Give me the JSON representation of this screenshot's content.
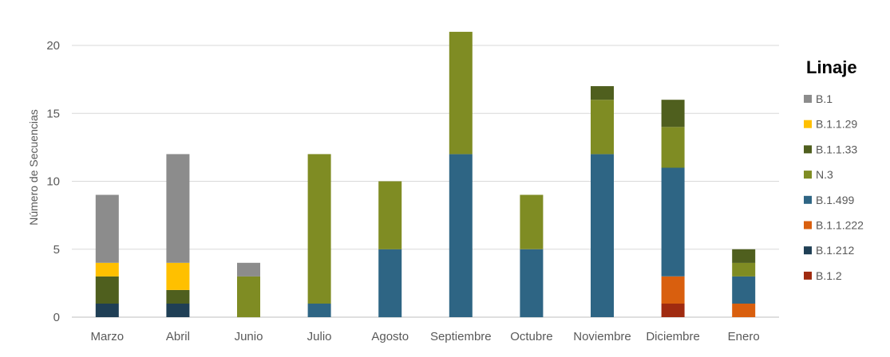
{
  "chart_data": {
    "type": "bar",
    "stacked": true,
    "title": "",
    "xlabel": "",
    "ylabel": "Número de Secuencias",
    "ylim": [
      0,
      22
    ],
    "yticks": [
      0,
      5,
      10,
      15,
      20
    ],
    "grid": "horizontal",
    "legend_title": "Linaje",
    "legend_position": "right",
    "categories": [
      "Marzo",
      "Abril",
      "Junio",
      "Julio",
      "Agosto",
      "Septiembre",
      "Octubre",
      "Noviembre",
      "Diciembre",
      "Enero"
    ],
    "stack_order": [
      "B.1.2",
      "B.1.212",
      "B.1.1.222",
      "B.1.499",
      "N.3",
      "B.1.1.33",
      "B.1.1.29",
      "B.1"
    ],
    "series": [
      {
        "name": "B.1",
        "color": "#8c8c8c",
        "values": [
          5,
          8,
          1,
          0,
          0,
          0,
          0,
          0,
          0,
          0
        ]
      },
      {
        "name": "B.1.1.29",
        "color": "#ffc000",
        "values": [
          1,
          2,
          0,
          0,
          0,
          0,
          0,
          0,
          0,
          0
        ]
      },
      {
        "name": "B.1.1.33",
        "color": "#4f5f1e",
        "values": [
          2,
          1,
          0,
          0,
          0,
          0,
          0,
          1,
          2,
          1
        ]
      },
      {
        "name": "N.3",
        "color": "#7f8c23",
        "values": [
          0,
          0,
          3,
          11,
          5,
          9,
          4,
          4,
          3,
          1
        ]
      },
      {
        "name": "B.1.499",
        "color": "#2e6584",
        "values": [
          0,
          0,
          0,
          1,
          5,
          12,
          5,
          12,
          8,
          2
        ]
      },
      {
        "name": "B.1.1.222",
        "color": "#d95f0e",
        "values": [
          0,
          0,
          0,
          0,
          0,
          0,
          0,
          0,
          2,
          1
        ]
      },
      {
        "name": "B.1.212",
        "color": "#1f3f55",
        "values": [
          1,
          1,
          0,
          0,
          0,
          0,
          0,
          0,
          0,
          0
        ]
      },
      {
        "name": "B.1.2",
        "color": "#a02b10",
        "values": [
          0,
          0,
          0,
          0,
          0,
          0,
          0,
          0,
          1,
          0
        ]
      }
    ]
  }
}
